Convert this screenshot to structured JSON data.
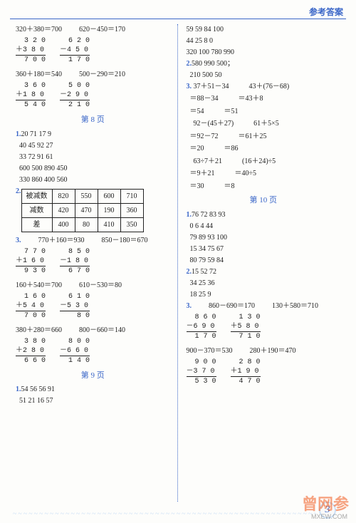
{
  "header": "参考答案",
  "page_number": "3",
  "watermark": "曾网参",
  "watermark_sub": "MXEW.COM",
  "left": {
    "top_eq": [
      "320＋380＝700",
      "620－450＝170"
    ],
    "calc1a": "  3 2 0\n＋3 8 0",
    "calc1a_res": "  7 0 0",
    "calc1b": "  6 2 0\n－4 5 0",
    "calc1b_res": "  1 7 0",
    "eq2": [
      "360＋180＝540",
      "500－290＝210"
    ],
    "calc2a": "  3 6 0\n＋1 8 0",
    "calc2a_res": "  5 4 0",
    "calc2b": "  5 0 0\n－2 9 0",
    "calc2b_res": "  2 1 0",
    "page8": "第 8 页",
    "p8_1": [
      "1.",
      "20  71  17  9",
      "40  45  92  27",
      "33  72  91  61",
      "600  500  890  450",
      "330  860  400  560"
    ],
    "table": {
      "label": "2.",
      "rows": [
        [
          "被减数",
          "820",
          "550",
          "600",
          "710"
        ],
        [
          "减数",
          "420",
          "470",
          "190",
          "360"
        ],
        [
          "差",
          "400",
          "80",
          "410",
          "350"
        ]
      ]
    },
    "eq3": [
      "3.",
      "770＋160＝930",
      "850－180＝670"
    ],
    "calc3a": "  7 7 0\n＋1 6 0",
    "calc3a_res": "  9 3 0",
    "calc3b": "  8 5 0\n－1 8 0",
    "calc3b_res": "  6 7 0",
    "eq4": [
      "160＋540＝700",
      "610－530＝80"
    ],
    "calc4a": "  1 6 0\n＋5 4 0",
    "calc4a_res": "  7 0 0",
    "calc4b": "  6 1 0\n－5 3 0",
    "calc4b_res": "    8 0",
    "eq5": [
      "380＋280＝660",
      "800－660＝140"
    ],
    "calc5a": "  3 8 0\n＋2 8 0",
    "calc5a_res": "  6 6 0",
    "calc5b": "  8 0 0\n－6 6 0",
    "calc5b_res": "  1 4 0",
    "page9": "第 9 页",
    "p9_1": [
      "1.",
      "54  56  56  91",
      "51  21  16  57"
    ]
  },
  "right": {
    "top": [
      "59  59  84  100",
      "44  25  8  0",
      "320  100  780  990"
    ],
    "l2": [
      "2.",
      "580  990  500；",
      "210  500  50"
    ],
    "l3_head": [
      "3.",
      "  37＋51－34",
      "43＋(76－68)"
    ],
    "l3_rows": [
      [
        "＝88－34",
        "＝43＋8"
      ],
      [
        "＝54",
        "＝51"
      ],
      [
        "  92－(45＋27)",
        "61＋5×5"
      ],
      [
        "＝92－72",
        "＝61＋25"
      ],
      [
        "＝20",
        "＝86"
      ],
      [
        "  63÷7＋21",
        "(16＋24)÷5"
      ],
      [
        "＝9＋21",
        "＝40÷5"
      ],
      [
        "＝30",
        "＝8"
      ]
    ],
    "page10": "第 10 页",
    "p10_1": [
      "1.",
      "76  72  83  93",
      "0  6  4  44",
      "79  89  93  100",
      "15  34  75  67",
      "80  79  59  84"
    ],
    "p10_2": [
      "2.",
      "15  52  72",
      "34  25  36",
      "18  25  9"
    ],
    "eq6": [
      "3.",
      "860－690＝170",
      "130＋580＝710"
    ],
    "calc6a": "  8 6 0\n－6 9 0",
    "calc6a_res": "  1 7 0",
    "calc6b": "  1 3 0\n＋5 8 0",
    "calc6b_res": "  7 1 0",
    "eq7": [
      "900－370＝530",
      "280＋190＝470"
    ],
    "calc7a": "  9 0 0\n－3 7 0",
    "calc7a_res": "  5 3 0",
    "calc7b": "  2 8 0\n＋1 9 0",
    "calc7b_res": "  4 7 0"
  }
}
